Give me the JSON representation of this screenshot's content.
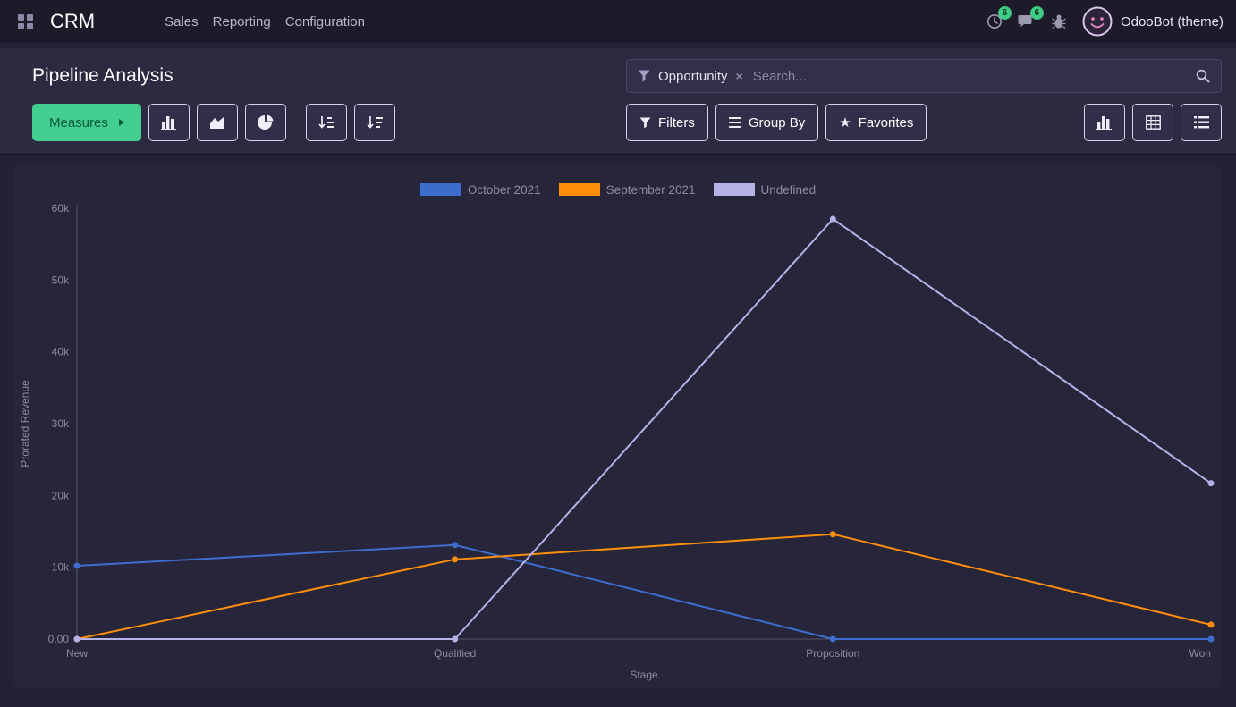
{
  "navbar": {
    "app_name": "CRM",
    "menu": [
      "Sales",
      "Reporting",
      "Configuration"
    ],
    "systray": {
      "activity_badge": "6",
      "message_badge": "6",
      "user_name": "OdooBot (theme)"
    }
  },
  "control_panel": {
    "title": "Pipeline Analysis",
    "search": {
      "facet": "Opportunity",
      "remove_glyph": "×",
      "placeholder": "Search..."
    },
    "buttons": {
      "measures": "Measures",
      "filters": "Filters",
      "group_by": "Group By",
      "favorites": "Favorites",
      "favorites_star": "★"
    }
  },
  "chart_data": {
    "type": "line",
    "title": "",
    "categories": [
      "New",
      "Qualified",
      "Proposition",
      "Won"
    ],
    "series": [
      {
        "name": "October 2021",
        "color": "#3d6dcc",
        "values": [
          10200,
          13100,
          0,
          0
        ]
      },
      {
        "name": "September 2021",
        "color": "#ff8e0a",
        "values": [
          0,
          11100,
          14600,
          2000
        ]
      },
      {
        "name": "Undefined",
        "color": "#b5b2e6",
        "values": [
          0,
          0,
          58500,
          21700
        ]
      }
    ],
    "xlabel": "Stage",
    "ylabel": "Prorated Revenue",
    "ylim": [
      0,
      60000
    ],
    "yticks": [
      "0.00",
      "10k",
      "20k",
      "30k",
      "40k",
      "50k",
      "60k"
    ],
    "legend_position": "top",
    "grid": false,
    "axis_color": "#55536b",
    "text_color": "#8d8b9e"
  }
}
